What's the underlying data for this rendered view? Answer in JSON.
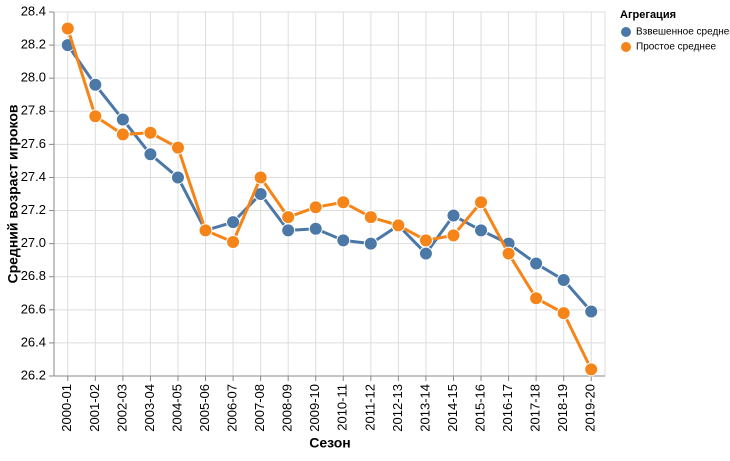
{
  "chart_data": {
    "type": "line",
    "x_label": "Сезон",
    "y_label": "Средний возраст игроков",
    "legend_title": "Агрегация",
    "categories": [
      "2000-01",
      "2001-02",
      "2002-03",
      "2003-04",
      "2004-05",
      "2005-06",
      "2006-07",
      "2007-08",
      "2008-09",
      "2009-10",
      "2010-11",
      "2011-12",
      "2012-13",
      "2013-14",
      "2014-15",
      "2015-16",
      "2016-17",
      "2017-18",
      "2018-19",
      "2019-20"
    ],
    "series": [
      {
        "name": "Взвешенное среднее",
        "color": "#4c78a8",
        "values": [
          28.2,
          27.96,
          27.75,
          27.54,
          27.4,
          27.08,
          27.13,
          27.3,
          27.08,
          27.09,
          27.02,
          27.0,
          27.11,
          26.94,
          27.17,
          27.08,
          27.0,
          26.88,
          26.78,
          26.59
        ]
      },
      {
        "name": "Простое среднее",
        "color": "#f58518",
        "values": [
          28.3,
          27.77,
          27.66,
          27.67,
          27.58,
          27.08,
          27.01,
          27.4,
          27.16,
          27.22,
          27.25,
          27.16,
          27.11,
          27.02,
          27.05,
          27.25,
          26.94,
          26.67,
          26.58,
          26.24
        ]
      }
    ],
    "ylim": [
      26.2,
      28.4
    ],
    "yticks": [
      26.2,
      26.4,
      26.6,
      26.8,
      {
        "value": 27,
        "label": "27.0"
      },
      27.2,
      27.4,
      27.6,
      27.8,
      {
        "value": 28,
        "label": "28.0"
      },
      28.2,
      28.4
    ],
    "grid": true,
    "legend_position": "right"
  }
}
